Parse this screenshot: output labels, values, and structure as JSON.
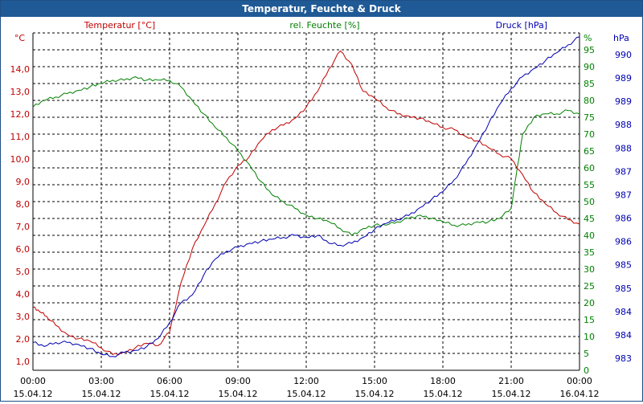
{
  "window": {
    "title": "Temperatur, Feuchte & Druck"
  },
  "colors": {
    "temperature": "#c00000",
    "humidity": "#008000",
    "pressure": "#0000b0",
    "grid": "#000000",
    "axisText": "#000000"
  },
  "chart_data": {
    "type": "line",
    "title": "Temperatur, Feuchte & Druck",
    "x": {
      "label": "",
      "range_hours": [
        0,
        24
      ],
      "tick_hours": [
        0,
        3,
        6,
        9,
        12,
        15,
        18,
        21,
        24
      ],
      "tick_labels_time": [
        "00:00",
        "03:00",
        "06:00",
        "09:00",
        "12:00",
        "15:00",
        "18:00",
        "21:00",
        "00:00"
      ],
      "tick_labels_date": [
        "15.04.12",
        "15.04.12",
        "15.04.12",
        "15.04.12",
        "15.04.12",
        "15.04.12",
        "15.04.12",
        "15.04.12",
        "16.04.12"
      ]
    },
    "axes": {
      "temperature": {
        "title": "Temperatur [°C]",
        "unit": "°C",
        "range": [
          0.6,
          15.6
        ],
        "ticks": [
          "1,0",
          "2,0",
          "3,0",
          "4,0",
          "5,0",
          "6,0",
          "7,0",
          "8,0",
          "9,0",
          "10,0",
          "11,0",
          "12,0",
          "13,0",
          "14,0"
        ]
      },
      "humidity": {
        "title": "rel. Feuchte [%]",
        "unit": "%",
        "range": [
          0,
          100
        ],
        "ticks": [
          "0",
          "5",
          "10",
          "15",
          "20",
          "25",
          "30",
          "35",
          "40",
          "45",
          "50",
          "55",
          "60",
          "65",
          "70",
          "75",
          "80",
          "85",
          "90",
          "95"
        ]
      },
      "pressure": {
        "title": "Druck [hPa]",
        "unit": "hPa",
        "range": [
          982.4,
          990.9
        ],
        "ticks": [
          "983",
          "984",
          "984",
          "985",
          "985",
          "986",
          "986",
          "987",
          "987",
          "988",
          "988",
          "989",
          "989",
          "990"
        ]
      }
    },
    "series": [
      {
        "name": "Temperatur",
        "axis": "temperature",
        "x": [
          0,
          0.3,
          0.6,
          1,
          1.5,
          2,
          2.5,
          3,
          3.5,
          4,
          4.5,
          5,
          5.5,
          6,
          6.5,
          7,
          7.5,
          8,
          8.5,
          9,
          9.5,
          10,
          10.5,
          11,
          11.5,
          12,
          12.5,
          13,
          13.5,
          14,
          14.5,
          15,
          15.5,
          16,
          16.5,
          17,
          17.5,
          18,
          18.5,
          19,
          19.5,
          20,
          20.5,
          21,
          21.5,
          22,
          22.5,
          23,
          23.5,
          24
        ],
        "values": [
          3.4,
          3.2,
          3.0,
          2.6,
          2.2,
          2.0,
          1.9,
          1.6,
          1.3,
          1.4,
          1.6,
          1.8,
          1.7,
          2.3,
          4.5,
          6.0,
          7.0,
          8.0,
          9.0,
          9.7,
          10.1,
          10.8,
          11.3,
          11.5,
          11.8,
          12.3,
          13.0,
          14.0,
          14.8,
          14.2,
          13.0,
          12.7,
          12.3,
          12.0,
          11.9,
          11.8,
          11.6,
          11.4,
          11.3,
          11.0,
          10.8,
          10.5,
          10.2,
          10.0,
          9.3,
          8.5,
          8.0,
          7.6,
          7.3,
          7.1
        ]
      },
      {
        "name": "rel. Feuchte",
        "axis": "humidity",
        "x": [
          0,
          0.5,
          1,
          1.5,
          2,
          2.5,
          3,
          3.5,
          4,
          4.5,
          5,
          5.5,
          6,
          6.5,
          7,
          7.5,
          8,
          8.5,
          9,
          9.5,
          10,
          10.5,
          11,
          11.5,
          12,
          12.5,
          13,
          13.5,
          14,
          14.5,
          15,
          15.5,
          16,
          16.5,
          17,
          17.5,
          18,
          18.5,
          19,
          19.5,
          20,
          20.5,
          21,
          21.2,
          21.5,
          22,
          22.5,
          23,
          23.5,
          24
        ],
        "values": [
          78,
          80,
          81,
          82,
          83,
          84,
          85,
          86,
          86,
          87,
          86,
          86,
          86,
          84,
          80,
          76,
          72,
          69,
          65,
          61,
          56,
          52,
          50,
          48,
          46,
          45,
          44,
          42,
          40,
          42,
          43,
          43,
          44,
          45,
          46,
          45,
          44,
          43,
          43,
          44,
          44,
          45,
          48,
          57,
          70,
          75,
          76,
          76,
          77,
          76
        ]
      },
      {
        "name": "Druck",
        "axis": "pressure",
        "x": [
          0,
          0.5,
          1,
          1.5,
          2,
          2.5,
          3,
          3.5,
          4,
          4.5,
          5,
          5.5,
          6,
          6.5,
          7,
          7.5,
          8,
          8.5,
          9,
          9.5,
          10,
          10.5,
          11,
          11.5,
          12,
          12.5,
          13,
          13.5,
          14,
          14.5,
          15,
          15.5,
          16,
          16.5,
          17,
          17.5,
          18,
          18.5,
          19,
          19.5,
          20,
          20.5,
          21,
          21.5,
          22,
          22.5,
          23,
          23.5,
          24
        ],
        "values": [
          983.1,
          983.0,
          983.1,
          983.1,
          983.05,
          982.95,
          982.8,
          982.75,
          982.85,
          982.9,
          983.0,
          983.2,
          983.6,
          984.1,
          984.3,
          984.8,
          985.2,
          985.4,
          985.5,
          985.6,
          985.65,
          985.7,
          985.75,
          985.8,
          985.75,
          985.8,
          985.6,
          985.55,
          985.6,
          985.75,
          985.95,
          986.1,
          986.2,
          986.3,
          986.5,
          986.7,
          986.9,
          987.2,
          987.6,
          988.1,
          988.6,
          989.1,
          989.5,
          989.8,
          990.0,
          990.2,
          990.4,
          990.6,
          990.8
        ]
      }
    ]
  }
}
